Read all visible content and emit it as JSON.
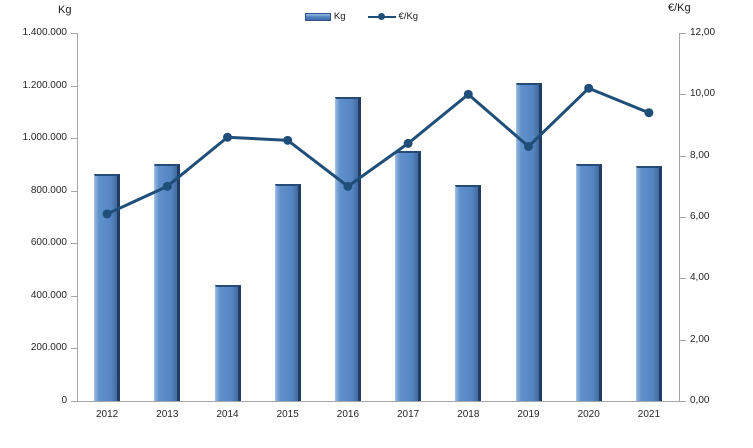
{
  "chart_data": {
    "type": "bar",
    "subtype": "bar-line-combo",
    "categories": [
      "2012",
      "2013",
      "2014",
      "2015",
      "2016",
      "2017",
      "2018",
      "2019",
      "2020",
      "2021"
    ],
    "series": [
      {
        "name": "Kg",
        "type": "bar",
        "axis": "left",
        "color": "#5586C4",
        "values": [
          865000,
          900000,
          440000,
          825000,
          1155000,
          950000,
          820000,
          1210000,
          900000,
          895000
        ]
      },
      {
        "name": "€/Kg",
        "type": "line",
        "axis": "right",
        "color": "#1F4E79",
        "values": [
          6.1,
          7.0,
          8.6,
          8.5,
          7.0,
          8.4,
          10.0,
          8.3,
          10.2,
          9.4
        ]
      }
    ],
    "left_axis": {
      "title": "Kg",
      "min": 0,
      "max": 1400000,
      "tick_step": 200000,
      "tick_labels": [
        "1.400.000",
        "1.200.000",
        "1.000.000",
        "800.000",
        "600.000",
        "400.000",
        "200.000",
        "0"
      ]
    },
    "right_axis": {
      "title": "€/Kg",
      "min": 0,
      "max": 12,
      "tick_step": 2,
      "tick_labels": [
        "12,00",
        "10,00",
        "8,00",
        "6,00",
        "4,00",
        "2,00",
        "0,00"
      ]
    },
    "x_axis": {
      "tick_labels": [
        "2012",
        "2013",
        "2014",
        "2015",
        "2016",
        "2017",
        "2018",
        "2019",
        "2020",
        "2021"
      ]
    },
    "legend": {
      "position": "top",
      "entries": [
        "Kg",
        "€/Kg"
      ]
    },
    "grid": false,
    "axis_line_color": "#A6A6A6"
  }
}
